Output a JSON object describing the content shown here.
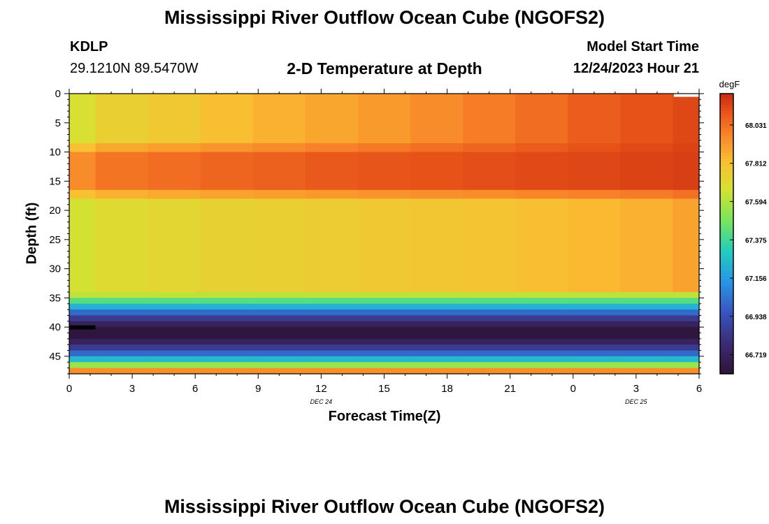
{
  "page": {
    "title": "Mississippi River Outflow Ocean Cube (NGOFS2)",
    "bottom_title": "Mississippi River Outflow Ocean Cube (NGOFS2)"
  },
  "station": {
    "id": "KDLP",
    "coords": "29.1210N  89.5470W"
  },
  "model": {
    "label": "Model Start Time",
    "start": "12/24/2023 Hour 21"
  },
  "chart_data": {
    "type": "heatmap",
    "title": "2-D Temperature at Depth",
    "xlabel": "Forecast Time(Z)",
    "ylabel": "Depth (ft)",
    "x_ticks": [
      "0",
      "3",
      "6",
      "9",
      "12",
      "15",
      "18",
      "21",
      "0",
      "3",
      "6"
    ],
    "x_range_hours": [
      0,
      30
    ],
    "date_labels": [
      {
        "text": "DEC 24",
        "hour": 12
      },
      {
        "text": "DEC 25",
        "hour": 27
      }
    ],
    "y_ticks": [
      0,
      5,
      10,
      15,
      20,
      25,
      30,
      35,
      40,
      45
    ],
    "ylim": [
      0,
      48
    ],
    "colorbar": {
      "unit": "degF",
      "ticks": [
        "68.031",
        "67.812",
        "67.594",
        "67.375",
        "67.156",
        "66.938",
        "66.719"
      ],
      "range": [
        66.61,
        68.21
      ]
    },
    "columns_hours": [
      0,
      1.25,
      3.75,
      6.25,
      8.75,
      11.25,
      13.75,
      16.25,
      18.75,
      21.25,
      23.75,
      26.25,
      28.75,
      30
    ],
    "depth_layers": [
      {
        "from": 0,
        "to": 8.5,
        "profile": "surface"
      },
      {
        "from": 8.5,
        "to": 10,
        "profile": "transition"
      },
      {
        "from": 10,
        "to": 16.5,
        "profile": "mid-warm"
      },
      {
        "from": 16.5,
        "to": 18,
        "profile": "transition"
      },
      {
        "from": 18,
        "to": 34,
        "profile": "lower"
      },
      {
        "from": 34,
        "to": 48,
        "profile": "bottom"
      }
    ],
    "surface_values": [
      67.67,
      67.75,
      67.78,
      67.82,
      67.86,
      67.89,
      67.92,
      67.96,
      68.0,
      68.04,
      68.08,
      68.11,
      68.14
    ],
    "mid_values": [
      67.96,
      68.02,
      68.04,
      68.06,
      68.07,
      68.09,
      68.1,
      68.11,
      68.12,
      68.13,
      68.14,
      68.15,
      68.16
    ],
    "lower_values": [
      67.66,
      67.7,
      67.72,
      67.74,
      67.75,
      67.76,
      67.78,
      67.79,
      67.8,
      67.82,
      67.84,
      67.86,
      67.9
    ],
    "bottom_profile": [
      {
        "from": 34,
        "to": 35,
        "value": 67.62
      },
      {
        "from": 35,
        "to": 36,
        "value": 67.42
      },
      {
        "from": 36,
        "to": 37,
        "value": 67.22
      },
      {
        "from": 37,
        "to": 38,
        "value": 67.02
      },
      {
        "from": 38,
        "to": 39,
        "value": 66.85
      },
      {
        "from": 39,
        "to": 40,
        "value": 66.72
      },
      {
        "from": 40,
        "to": 42,
        "value": 66.63
      },
      {
        "from": 42,
        "to": 43,
        "value": 66.72
      },
      {
        "from": 43,
        "to": 44,
        "value": 66.85
      },
      {
        "from": 44,
        "to": 45,
        "value": 67.02
      },
      {
        "from": 45,
        "to": 46,
        "value": 67.25
      },
      {
        "from": 46,
        "to": 47,
        "value": 67.55
      },
      {
        "from": 47,
        "to": 48,
        "value": 67.95
      }
    ]
  }
}
